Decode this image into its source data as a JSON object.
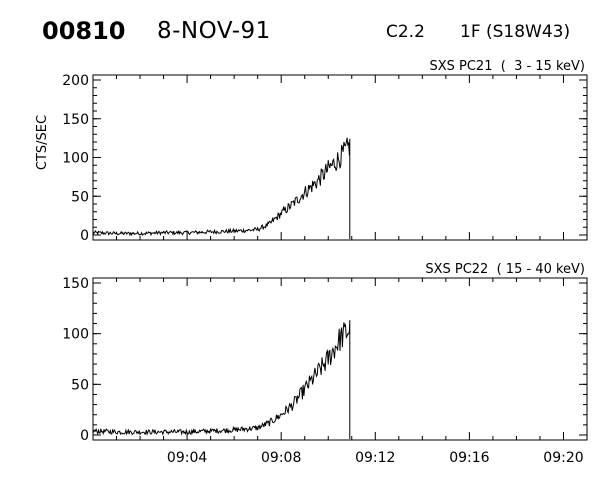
{
  "header": {
    "event_number": "00810",
    "date": "8-NOV-91",
    "goes_class": "C2.2",
    "flare_location": "1F (S18W43)"
  },
  "chart_data": [
    {
      "type": "line",
      "title": "SXS PC21  (  3 - 15 keV)",
      "ylabel": "CTS/SEC",
      "xlabel": "",
      "xlim": [
        "09:00",
        "09:21"
      ],
      "ylim": [
        0,
        200
      ],
      "yticks": [
        "0",
        "50",
        "100",
        "150",
        "200"
      ],
      "xtick_labels": [],
      "grid": false,
      "series": [
        {
          "x": [
            "09:00",
            "09:01",
            "09:02",
            "09:03",
            "09:04",
            "09:05",
            "09:06",
            "09:07",
            "09:07:30",
            "09:08",
            "09:08:30",
            "09:09",
            "09:09:30",
            "09:10",
            "09:10:30",
            "09:10:55",
            "09:10:56"
          ],
          "values": [
            3,
            2,
            2,
            3,
            3,
            4,
            5,
            7,
            14,
            28,
            40,
            55,
            68,
            85,
            100,
            115,
            0
          ]
        }
      ]
    },
    {
      "type": "line",
      "title": "SXS PC22  ( 15 - 40 keV)",
      "ylabel": "",
      "xlabel": "",
      "xlim": [
        "09:00",
        "09:21"
      ],
      "ylim": [
        0,
        150
      ],
      "yticks": [
        "0",
        "50",
        "100",
        "150"
      ],
      "xtick_labels": [
        "09:04",
        "09:08",
        "09:12",
        "09:16",
        "09:20"
      ],
      "grid": false,
      "series": [
        {
          "x": [
            "09:00",
            "09:01",
            "09:02",
            "09:03",
            "09:04",
            "09:05",
            "09:06",
            "09:07",
            "09:07:30",
            "09:08",
            "09:08:30",
            "09:09",
            "09:09:30",
            "09:10",
            "09:10:30",
            "09:10:55",
            "09:10:56"
          ],
          "values": [
            4,
            3,
            3,
            3,
            3,
            4,
            5,
            7,
            12,
            20,
            30,
            45,
            60,
            75,
            95,
            105,
            0
          ]
        }
      ]
    }
  ]
}
